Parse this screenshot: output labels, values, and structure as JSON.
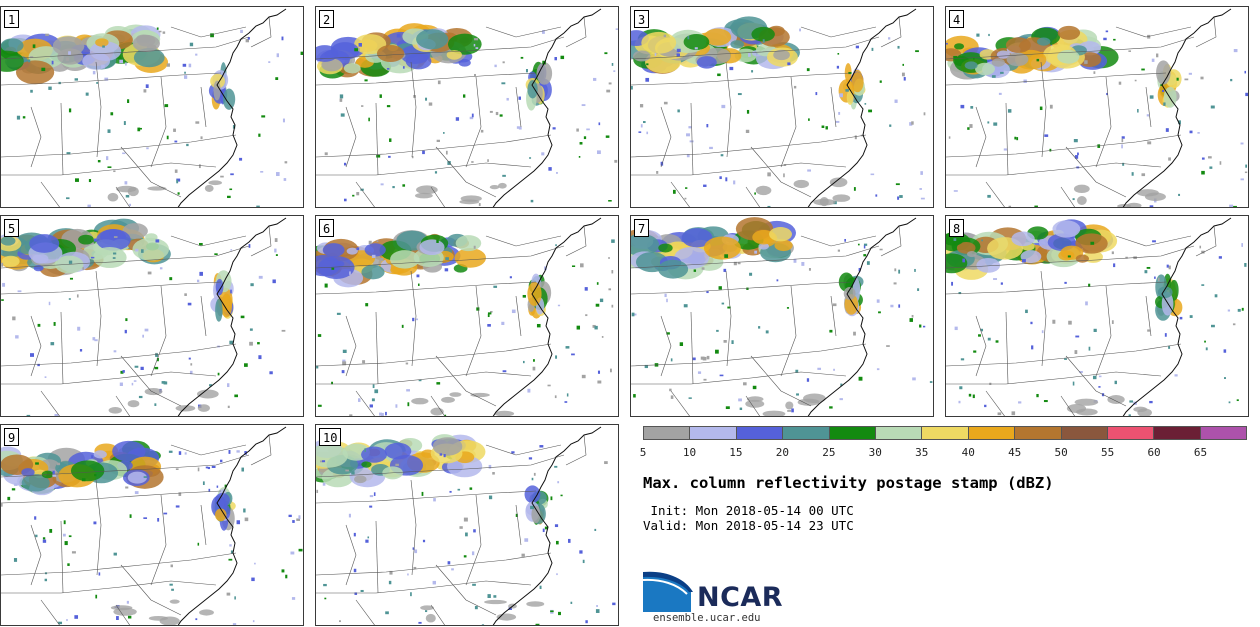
{
  "panels": [
    {
      "label": "1",
      "seed": 11
    },
    {
      "label": "2",
      "seed": 23
    },
    {
      "label": "3",
      "seed": 37
    },
    {
      "label": "4",
      "seed": 41
    },
    {
      "label": "5",
      "seed": 53
    },
    {
      "label": "6",
      "seed": 67
    },
    {
      "label": "7",
      "seed": 71
    },
    {
      "label": "8",
      "seed": 83
    },
    {
      "label": "9",
      "seed": 97
    },
    {
      "label": "10",
      "seed": 101
    }
  ],
  "legend": {
    "ticks": [
      "5",
      "10",
      "15",
      "20",
      "25",
      "30",
      "35",
      "40",
      "45",
      "50",
      "55",
      "60",
      "65"
    ],
    "colors": [
      "#a3a3a3",
      "#b4b9ec",
      "#5561da",
      "#4f9495",
      "#138a10",
      "#b9dbb6",
      "#eed963",
      "#e9a81d",
      "#b4762f",
      "#8a573d",
      "#ec5271",
      "#6b1f35",
      "#ad52ab"
    ]
  },
  "title": "Max. column reflectivity postage stamp (dBZ)",
  "init": " Init: Mon 2018-05-14 00 UTC",
  "valid": "Valid: Mon 2018-05-14 23 UTC",
  "logo": {
    "name": "NCAR",
    "url": "ensemble.ucar.edu"
  }
}
